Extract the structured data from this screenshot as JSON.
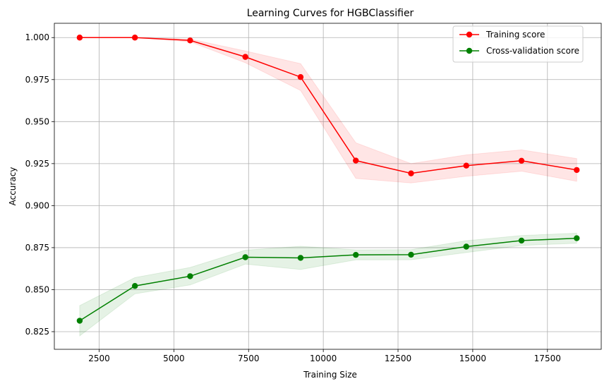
{
  "chart_data": {
    "type": "line",
    "title": "Learning Curves for HGBClassifier",
    "xlabel": "Training Size",
    "ylabel": "Accuracy",
    "xlim": [
      1000,
      19300
    ],
    "ylim": [
      0.8145,
      1.0085
    ],
    "x": [
      1848,
      3696,
      5544,
      7392,
      9240,
      11088,
      12936,
      14784,
      16632,
      18480
    ],
    "xticks": [
      2500,
      5000,
      7500,
      10000,
      12500,
      15000,
      17500
    ],
    "yticks": [
      0.825,
      0.85,
      0.875,
      0.9,
      0.925,
      0.95,
      0.975,
      1.0
    ],
    "xtick_labels": [
      "2500",
      "5000",
      "7500",
      "10000",
      "12500",
      "15000",
      "17500"
    ],
    "ytick_labels": [
      "0.825",
      "0.850",
      "0.875",
      "0.900",
      "0.925",
      "0.950",
      "0.975",
      "1.000"
    ],
    "grid": true,
    "legend_position": "top-right",
    "series": [
      {
        "name": "Training score",
        "color": "#ff0000",
        "values": [
          1.0,
          1.0,
          0.9983,
          0.9885,
          0.9765,
          0.9268,
          0.9192,
          0.9238,
          0.9267,
          0.9212
        ],
        "band_lower": [
          1.0,
          1.0,
          0.9975,
          0.985,
          0.9685,
          0.9162,
          0.9135,
          0.9175,
          0.9205,
          0.9145
        ],
        "band_upper": [
          1.0,
          1.0,
          0.9991,
          0.992,
          0.9845,
          0.9374,
          0.925,
          0.9302,
          0.9332,
          0.928
        ]
      },
      {
        "name": "Cross-validation score",
        "color": "#008000",
        "values": [
          0.8315,
          0.8522,
          0.858,
          0.8693,
          0.8689,
          0.8707,
          0.8708,
          0.8756,
          0.8792,
          0.8806
        ],
        "band_lower": [
          0.8225,
          0.8475,
          0.8528,
          0.8652,
          0.862,
          0.8677,
          0.8678,
          0.8721,
          0.8763,
          0.8776
        ],
        "band_upper": [
          0.8405,
          0.8572,
          0.8632,
          0.8735,
          0.8758,
          0.8737,
          0.8738,
          0.8791,
          0.8822,
          0.8836
        ]
      }
    ]
  }
}
